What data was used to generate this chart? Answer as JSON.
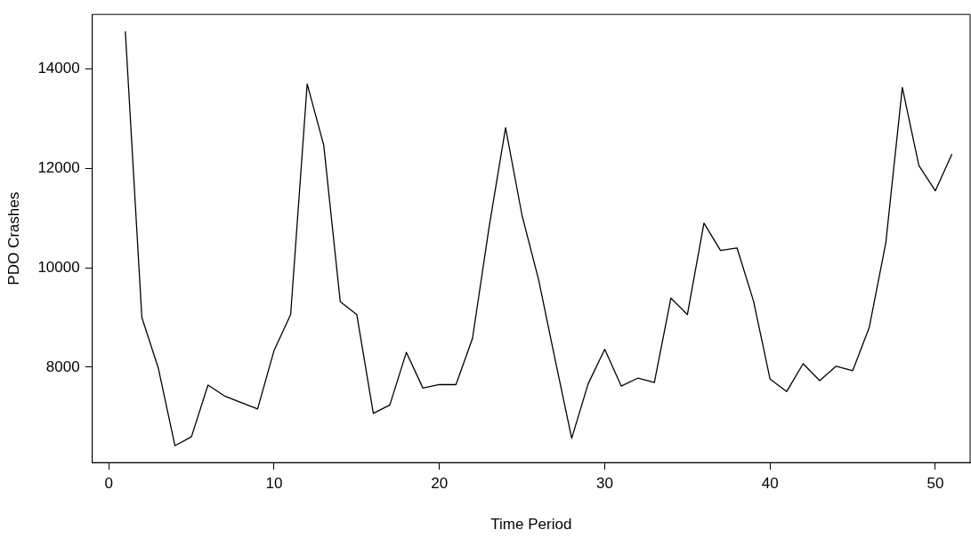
{
  "chart_data": {
    "type": "line",
    "xlabel": "Time Period",
    "ylabel": "PDO Crashes",
    "x": [
      1,
      2,
      3,
      4,
      5,
      6,
      7,
      8,
      9,
      10,
      11,
      12,
      13,
      14,
      15,
      16,
      17,
      18,
      19,
      20,
      21,
      22,
      23,
      24,
      25,
      26,
      27,
      28,
      29,
      30,
      31,
      32,
      33,
      34,
      35,
      36,
      37,
      38,
      39,
      40,
      41,
      42,
      43,
      44,
      45,
      46,
      47,
      48,
      49,
      50,
      51
    ],
    "series": [
      {
        "color": "#000000",
        "values": [
          14760,
          9000,
          7975,
          6420,
          6600,
          7640,
          7420,
          7290,
          7160,
          8340,
          9060,
          13700,
          12470,
          9320,
          9060,
          7070,
          7240,
          8300,
          7580,
          7650,
          7650,
          8580,
          10810,
          12820,
          11050,
          9760,
          8150,
          6570,
          7670,
          8360,
          7620,
          7780,
          7690,
          9390,
          9060,
          10900,
          10350,
          10400,
          9330,
          7760,
          7510,
          8070,
          7730,
          8020,
          7930,
          8800,
          10500,
          13630,
          12060,
          11550,
          12290
        ]
      }
    ],
    "xlim": [
      -1,
      52.1
    ],
    "xticks": [
      0,
      10,
      20,
      30,
      40,
      50
    ],
    "ylim": [
      6080,
      15100
    ],
    "yticks": [
      8000,
      10000,
      12000,
      14000
    ],
    "grid": false,
    "legend": false,
    "marker": "none",
    "line_style": "solid"
  }
}
